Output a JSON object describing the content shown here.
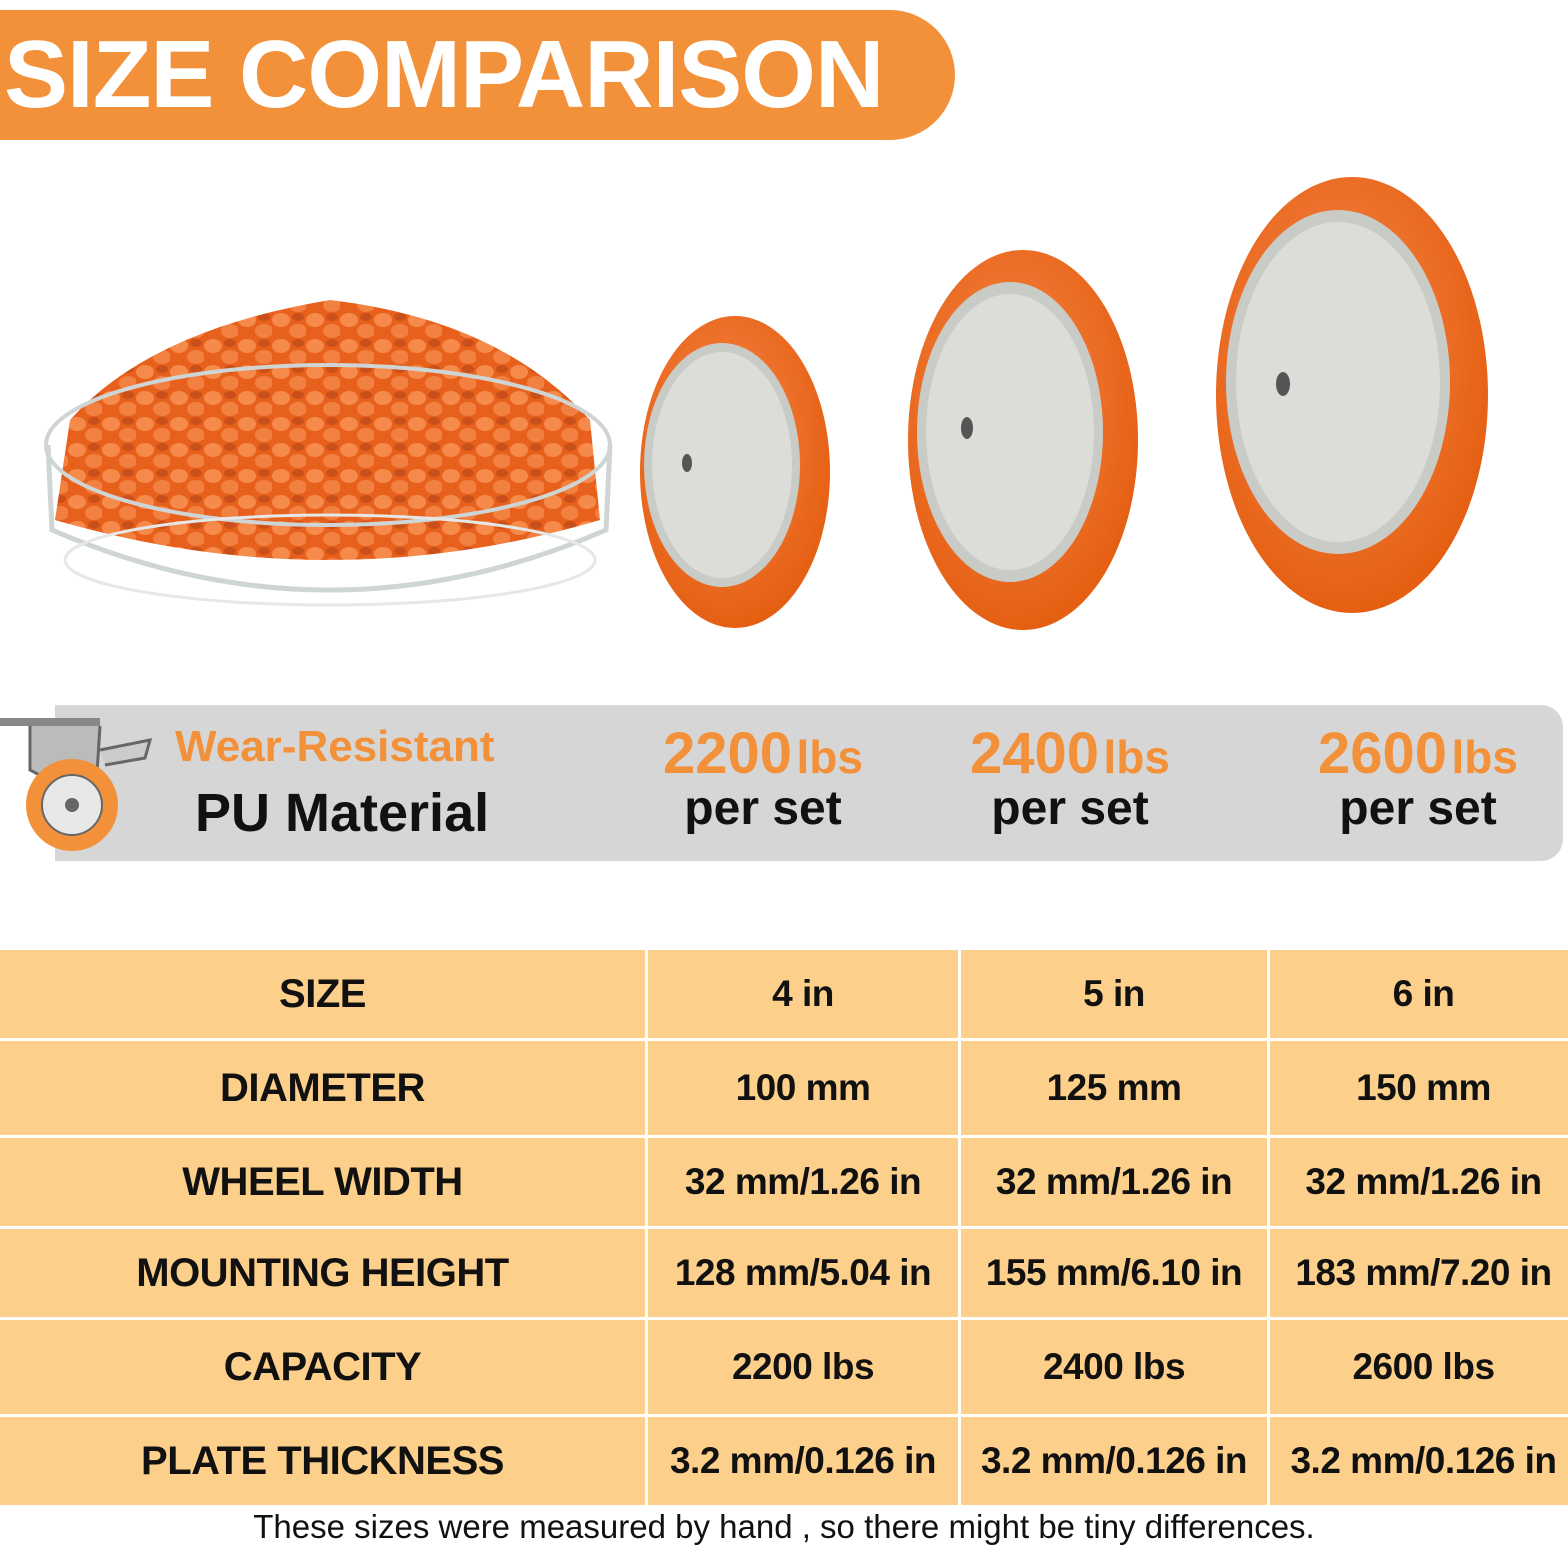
{
  "header": {
    "title": "SIZE COMPARISON"
  },
  "features": {
    "material": {
      "line1": "Wear-Resistant",
      "line2": "PU Material"
    },
    "capacities": [
      {
        "value": "2200",
        "unit": "lbs",
        "note": "per set"
      },
      {
        "value": "2400",
        "unit": "lbs",
        "note": "per set"
      },
      {
        "value": "2600",
        "unit": "lbs",
        "note": "per set"
      }
    ]
  },
  "table": {
    "rows": [
      [
        "SIZE",
        "4 in",
        "5 in",
        "6 in"
      ],
      [
        "DIAMETER",
        "100 mm",
        "125 mm",
        "150 mm"
      ],
      [
        "WHEEL WIDTH",
        "32 mm/1.26 in",
        "32 mm/1.26 in",
        "32 mm/1.26 in"
      ],
      [
        "MOUNTING HEIGHT",
        "128 mm/5.04 in",
        "155 mm/6.10 in",
        "183 mm/7.20 in"
      ],
      [
        "CAPACITY",
        "2200 lbs",
        "2400 lbs",
        "2600 lbs"
      ],
      [
        "PLATE THICKNESS",
        "3.2 mm/0.126 in",
        "3.2 mm/0.126 in",
        "3.2 mm/0.126 in"
      ]
    ]
  },
  "footer": {
    "note": "These sizes were  measured by hand , so there might be tiny differences."
  }
}
